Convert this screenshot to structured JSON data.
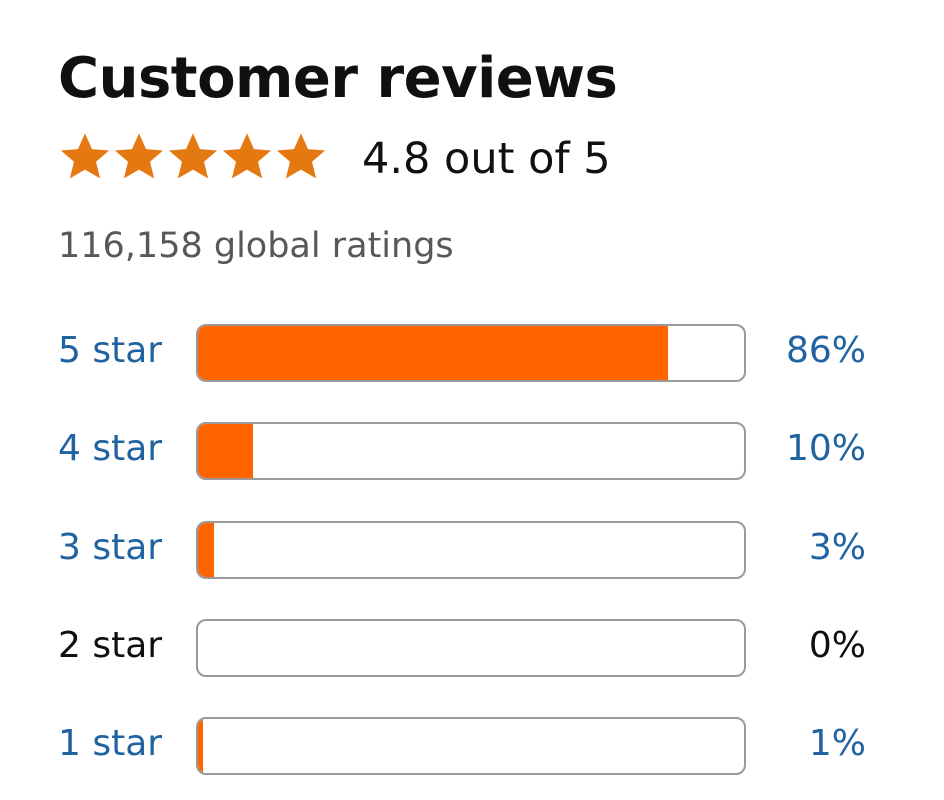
{
  "title": "Customer reviews",
  "rating": {
    "stars": 4.8,
    "text": "4.8 out of 5",
    "star_color": "#e47911"
  },
  "total_ratings": "116,158 global ratings",
  "bar_color": "#ff6400",
  "link_color": "#2162a1",
  "histogram": [
    {
      "label": "5 star",
      "percent_text": "86%",
      "percent": 86,
      "link": true
    },
    {
      "label": "4 star",
      "percent_text": "10%",
      "percent": 10,
      "link": true
    },
    {
      "label": "3 star",
      "percent_text": "3%",
      "percent": 3,
      "link": true
    },
    {
      "label": "2 star",
      "percent_text": "0%",
      "percent": 0,
      "link": false
    },
    {
      "label": "1 star",
      "percent_text": "1%",
      "percent": 1,
      "link": true
    }
  ]
}
